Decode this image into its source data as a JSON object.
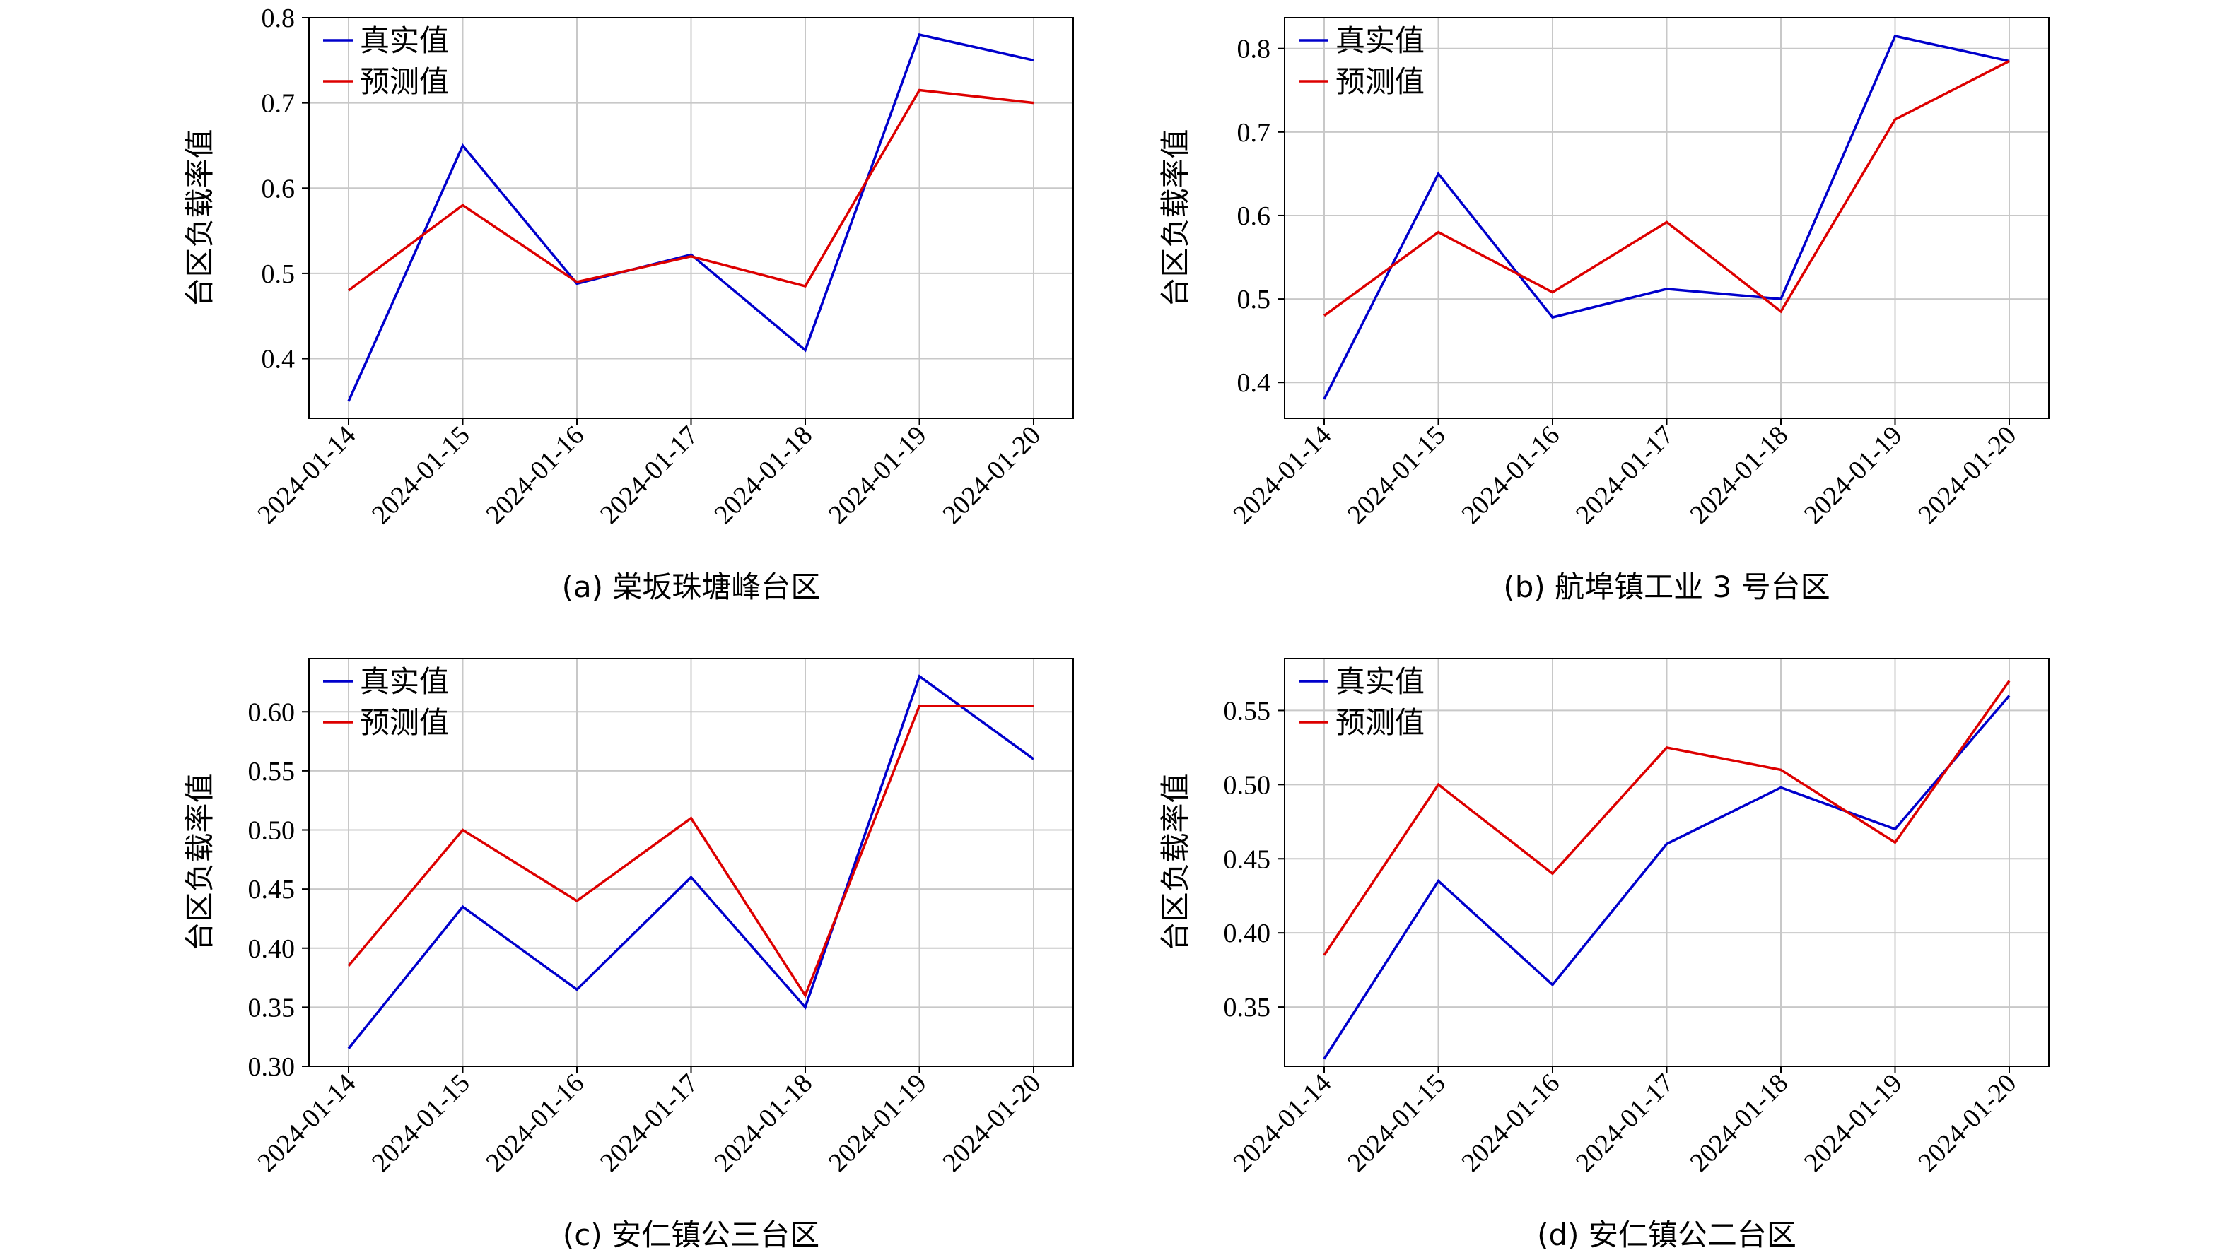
{
  "chart_data": [
    {
      "type": "line",
      "caption": "(a) 棠坂珠塘峰台区",
      "ylabel": "台区负载率值",
      "categories": [
        "2024-01-14",
        "2024-01-15",
        "2024-01-16",
        "2024-01-17",
        "2024-01-18",
        "2024-01-19",
        "2024-01-20"
      ],
      "ylim": [
        0.33,
        0.8
      ],
      "yticks": [
        0.4,
        0.5,
        0.6,
        0.7,
        0.8
      ],
      "ytick_labels": [
        "0.4",
        "0.5",
        "0.6",
        "0.7",
        "0.8"
      ],
      "grid": true,
      "legend": "top-left",
      "series": [
        {
          "name": "真实值",
          "color": "#0000cc",
          "values": [
            0.35,
            0.65,
            0.488,
            0.522,
            0.41,
            0.78,
            0.75
          ]
        },
        {
          "name": "预测值",
          "color": "#dd0000",
          "values": [
            0.48,
            0.58,
            0.49,
            0.52,
            0.485,
            0.715,
            0.7
          ]
        }
      ]
    },
    {
      "type": "line",
      "caption": "(b) 航埠镇工业 3 号台区",
      "ylabel": "台区负载率值",
      "categories": [
        "2024-01-14",
        "2024-01-15",
        "2024-01-16",
        "2024-01-17",
        "2024-01-18",
        "2024-01-19",
        "2024-01-20"
      ],
      "ylim": [
        0.357,
        0.837
      ],
      "yticks": [
        0.4,
        0.5,
        0.6,
        0.7,
        0.8
      ],
      "ytick_labels": [
        "0.4",
        "0.5",
        "0.6",
        "0.7",
        "0.8"
      ],
      "grid": true,
      "legend": "top-left",
      "series": [
        {
          "name": "真实值",
          "color": "#0000cc",
          "values": [
            0.38,
            0.65,
            0.478,
            0.512,
            0.5,
            0.815,
            0.785
          ]
        },
        {
          "name": "预测值",
          "color": "#dd0000",
          "values": [
            0.48,
            0.58,
            0.508,
            0.592,
            0.485,
            0.715,
            0.785
          ]
        }
      ]
    },
    {
      "type": "line",
      "caption": "(c) 安仁镇公三台区",
      "ylabel": "台区负载率值",
      "categories": [
        "2024-01-14",
        "2024-01-15",
        "2024-01-16",
        "2024-01-17",
        "2024-01-18",
        "2024-01-19",
        "2024-01-20"
      ],
      "ylim": [
        0.3,
        0.645
      ],
      "yticks": [
        0.3,
        0.35,
        0.4,
        0.45,
        0.5,
        0.55,
        0.6
      ],
      "ytick_labels": [
        "0.30",
        "0.35",
        "0.40",
        "0.45",
        "0.50",
        "0.55",
        "0.60"
      ],
      "grid": true,
      "legend": "top-left",
      "series": [
        {
          "name": "真实值",
          "color": "#0000cc",
          "values": [
            0.315,
            0.435,
            0.365,
            0.46,
            0.35,
            0.63,
            0.56
          ]
        },
        {
          "name": "预测值",
          "color": "#dd0000",
          "values": [
            0.385,
            0.5,
            0.44,
            0.51,
            0.36,
            0.605,
            0.605
          ]
        }
      ]
    },
    {
      "type": "line",
      "caption": "(d) 安仁镇公二台区",
      "ylabel": "台区负载率值",
      "categories": [
        "2024-01-14",
        "2024-01-15",
        "2024-01-16",
        "2024-01-17",
        "2024-01-18",
        "2024-01-19",
        "2024-01-20"
      ],
      "ylim": [
        0.31,
        0.585
      ],
      "yticks": [
        0.35,
        0.4,
        0.45,
        0.5,
        0.55
      ],
      "ytick_labels": [
        "0.35",
        "0.40",
        "0.45",
        "0.50",
        "0.55"
      ],
      "grid": true,
      "legend": "top-left",
      "series": [
        {
          "name": "真实值",
          "color": "#0000cc",
          "values": [
            0.315,
            0.435,
            0.365,
            0.46,
            0.498,
            0.47,
            0.56
          ]
        },
        {
          "name": "预测值",
          "color": "#dd0000",
          "values": [
            0.385,
            0.5,
            0.44,
            0.525,
            0.51,
            0.461,
            0.57
          ]
        }
      ]
    }
  ]
}
